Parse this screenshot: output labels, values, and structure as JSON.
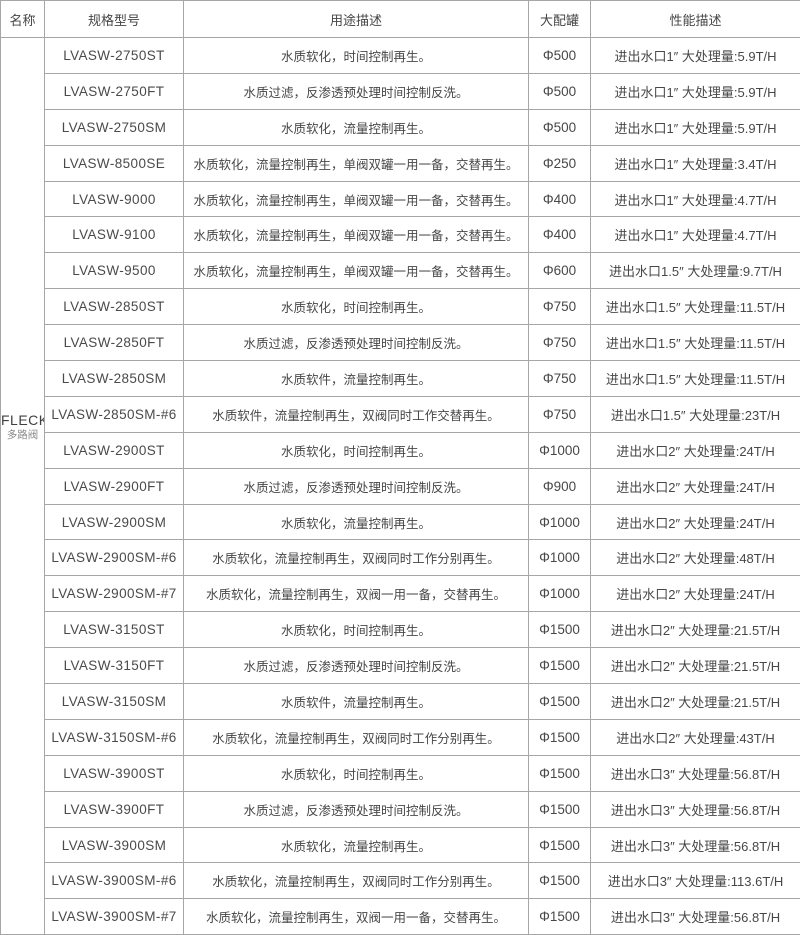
{
  "colors": {
    "background": "#ffffff",
    "border": "#a6a6a6",
    "text": "#474747",
    "sub_text": "#8a8a8a"
  },
  "table": {
    "headers": {
      "name": "名称",
      "model": "规格型号",
      "usage": "用途描述",
      "tank": "大配罐",
      "performance": "性能描述"
    },
    "name_cell": {
      "brand": "FLECK",
      "sub": "多路阀"
    },
    "rows": [
      {
        "model": "LVASW-2750ST",
        "usage": "水质软化，时间控制再生。",
        "tank": "Φ500",
        "performance": "进出水口1″ 大处理量:5.9T/H"
      },
      {
        "model": "LVASW-2750FT",
        "usage": "水质过滤，反渗透预处理时间控制反洗。",
        "tank": "Φ500",
        "performance": "进出水口1″ 大处理量:5.9T/H"
      },
      {
        "model": "LVASW-2750SM",
        "usage": "水质软化，流量控制再生。",
        "tank": "Φ500",
        "performance": "进出水口1″ 大处理量:5.9T/H"
      },
      {
        "model": "LVASW-8500SE",
        "usage": "水质软化，流量控制再生，单阀双罐一用一备，交替再生。",
        "tank": "Φ250",
        "performance": "进出水口1″ 大处理量:3.4T/H"
      },
      {
        "model": "LVASW-9000",
        "usage": "水质软化，流量控制再生，单阀双罐一用一备，交替再生。",
        "tank": "Φ400",
        "performance": "进出水口1″ 大处理量:4.7T/H"
      },
      {
        "model": "LVASW-9100",
        "usage": "水质软化，流量控制再生，单阀双罐一用一备，交替再生。",
        "tank": "Φ400",
        "performance": "进出水口1″ 大处理量:4.7T/H"
      },
      {
        "model": "LVASW-9500",
        "usage": "水质软化，流量控制再生，单阀双罐一用一备，交替再生。",
        "tank": "Φ600",
        "performance": "进出水口1.5″ 大处理量:9.7T/H"
      },
      {
        "model": "LVASW-2850ST",
        "usage": "水质软化，时间控制再生。",
        "tank": "Φ750",
        "performance": "进出水口1.5″ 大处理量:11.5T/H"
      },
      {
        "model": "LVASW-2850FT",
        "usage": "水质过滤，反渗透预处理时间控制反洗。",
        "tank": "Φ750",
        "performance": "进出水口1.5″ 大处理量:11.5T/H"
      },
      {
        "model": "LVASW-2850SM",
        "usage": "水质软件，流量控制再生。",
        "tank": "Φ750",
        "performance": "进出水口1.5″ 大处理量:11.5T/H"
      },
      {
        "model": "LVASW-2850SM-#6",
        "usage": "水质软件，流量控制再生，双阀同时工作交替再生。",
        "tank": "Φ750",
        "performance": "进出水口1.5″ 大处理量:23T/H"
      },
      {
        "model": "LVASW-2900ST",
        "usage": "水质软化，时间控制再生。",
        "tank": "Φ1000",
        "performance": "进出水口2″ 大处理量:24T/H"
      },
      {
        "model": "LVASW-2900FT",
        "usage": "水质过滤，反渗透预处理时间控制反洗。",
        "tank": "Φ900",
        "performance": "进出水口2″ 大处理量:24T/H"
      },
      {
        "model": "LVASW-2900SM",
        "usage": "水质软化，流量控制再生。",
        "tank": "Φ1000",
        "performance": "进出水口2″ 大处理量:24T/H"
      },
      {
        "model": "LVASW-2900SM-#6",
        "usage": "水质软化，流量控制再生，双阀同时工作分别再生。",
        "tank": "Φ1000",
        "performance": "进出水口2″ 大处理量:48T/H"
      },
      {
        "model": "LVASW-2900SM-#7",
        "usage": "水质软化，流量控制再生，双阀一用一备，交替再生。",
        "tank": "Φ1000",
        "performance": "进出水口2″ 大处理量:24T/H"
      },
      {
        "model": "LVASW-3150ST",
        "usage": "水质软化，时间控制再生。",
        "tank": "Φ1500",
        "performance": "进出水口2″ 大处理量:21.5T/H"
      },
      {
        "model": "LVASW-3150FT",
        "usage": "水质过滤，反渗透预处理时间控制反洗。",
        "tank": "Φ1500",
        "performance": "进出水口2″ 大处理量:21.5T/H"
      },
      {
        "model": "LVASW-3150SM",
        "usage": "水质软件，流量控制再生。",
        "tank": "Φ1500",
        "performance": "进出水口2″ 大处理量:21.5T/H"
      },
      {
        "model": "LVASW-3150SM-#6",
        "usage": "水质软化，流量控制再生，双阀同时工作分别再生。",
        "tank": "Φ1500",
        "performance": "进出水口2″ 大处理量:43T/H"
      },
      {
        "model": "LVASW-3900ST",
        "usage": "水质软化，时间控制再生。",
        "tank": "Φ1500",
        "performance": "进出水口3″ 大处理量:56.8T/H"
      },
      {
        "model": "LVASW-3900FT",
        "usage": "水质过滤，反渗透预处理时间控制反洗。",
        "tank": "Φ1500",
        "performance": "进出水口3″ 大处理量:56.8T/H"
      },
      {
        "model": "LVASW-3900SM",
        "usage": "水质软化，流量控制再生。",
        "tank": "Φ1500",
        "performance": "进出水口3″ 大处理量:56.8T/H"
      },
      {
        "model": "LVASW-3900SM-#6",
        "usage": "水质软化，流量控制再生，双阀同时工作分别再生。",
        "tank": "Φ1500",
        "performance": "进出水口3″ 大处理量:113.6T/H"
      },
      {
        "model": "LVASW-3900SM-#7",
        "usage": "水质软化，流量控制再生，双阀一用一备，交替再生。",
        "tank": "Φ1500",
        "performance": "进出水口3″ 大处理量:56.8T/H"
      }
    ]
  }
}
